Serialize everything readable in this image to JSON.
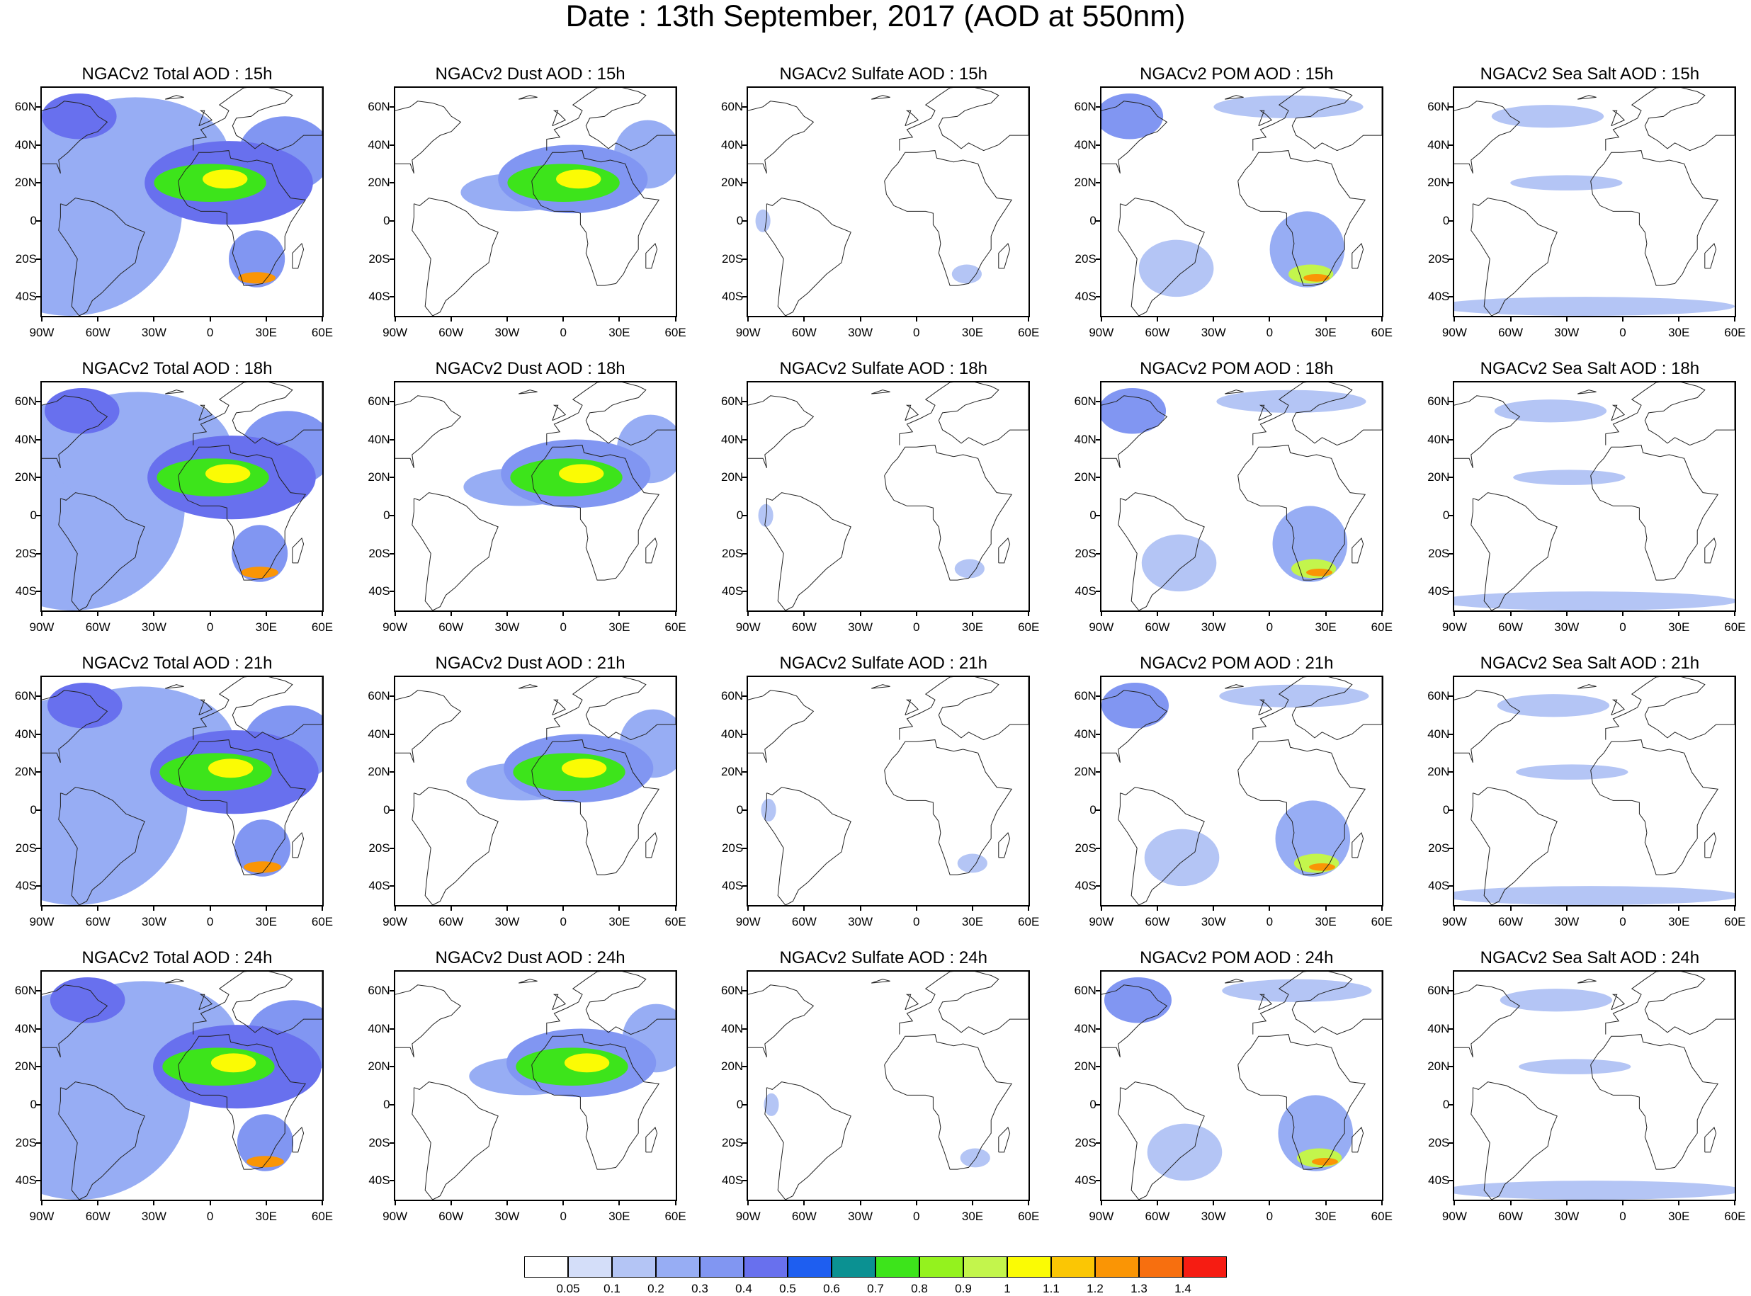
{
  "title": "Date : 13th September, 2017 (AOD at 550nm)",
  "map_extent": {
    "lon": [
      -90,
      60
    ],
    "lat": [
      -50,
      70
    ]
  },
  "lat_ticks": [
    "60N",
    "40N",
    "20N",
    "0",
    "20S",
    "40S"
  ],
  "lat_values": [
    60,
    40,
    20,
    0,
    -20,
    -40
  ],
  "lon_ticks": [
    "90W",
    "60W",
    "30W",
    "0",
    "30E",
    "60E"
  ],
  "lon_values": [
    -90,
    -60,
    -30,
    0,
    30,
    60
  ],
  "species": [
    {
      "key": "total",
      "name": "Total"
    },
    {
      "key": "dust",
      "name": "Dust"
    },
    {
      "key": "sulfate",
      "name": "Sulfate"
    },
    {
      "key": "pom",
      "name": "POM"
    },
    {
      "key": "seasalt",
      "name": "Sea Salt"
    }
  ],
  "panels": [
    {
      "title": "NGACv2 Total AOD : 15h",
      "species": "total",
      "hour": "15h"
    },
    {
      "title": "NGACv2 Dust AOD : 15h",
      "species": "dust",
      "hour": "15h"
    },
    {
      "title": "NGACv2 Sulfate AOD : 15h",
      "species": "sulfate",
      "hour": "15h"
    },
    {
      "title": "NGACv2 POM AOD : 15h",
      "species": "pom",
      "hour": "15h"
    },
    {
      "title": "NGACv2 Sea Salt AOD : 15h",
      "species": "seasalt",
      "hour": "15h"
    },
    {
      "title": "NGACv2 Total AOD : 18h",
      "species": "total",
      "hour": "18h"
    },
    {
      "title": "NGACv2 Dust AOD : 18h",
      "species": "dust",
      "hour": "18h"
    },
    {
      "title": "NGACv2 Sulfate AOD : 18h",
      "species": "sulfate",
      "hour": "18h"
    },
    {
      "title": "NGACv2 POM AOD : 18h",
      "species": "pom",
      "hour": "18h"
    },
    {
      "title": "NGACv2 Sea Salt AOD : 18h",
      "species": "seasalt",
      "hour": "18h"
    },
    {
      "title": "NGACv2 Total AOD : 21h",
      "species": "total",
      "hour": "21h"
    },
    {
      "title": "NGACv2 Dust AOD : 21h",
      "species": "dust",
      "hour": "21h"
    },
    {
      "title": "NGACv2 Sulfate AOD : 21h",
      "species": "sulfate",
      "hour": "21h"
    },
    {
      "title": "NGACv2 POM AOD : 21h",
      "species": "pom",
      "hour": "21h"
    },
    {
      "title": "NGACv2 Sea Salt AOD : 21h",
      "species": "seasalt",
      "hour": "21h"
    },
    {
      "title": "NGACv2 Total AOD : 24h",
      "species": "total",
      "hour": "24h"
    },
    {
      "title": "NGACv2 Dust AOD : 24h",
      "species": "dust",
      "hour": "24h"
    },
    {
      "title": "NGACv2 Sulfate AOD : 24h",
      "species": "sulfate",
      "hour": "24h"
    },
    {
      "title": "NGACv2 POM AOD : 24h",
      "species": "pom",
      "hour": "24h"
    },
    {
      "title": "NGACv2 Sea Salt  AOD : 24h",
      "species": "seasalt",
      "hour": "24h"
    }
  ],
  "colorbar": {
    "labels": [
      "0.05",
      "0.1",
      "0.2",
      "0.3",
      "0.4",
      "0.5",
      "0.6",
      "0.7",
      "0.8",
      "0.9",
      "1",
      "1.1",
      "1.2",
      "1.3",
      "1.4"
    ],
    "colors": [
      "#ffffff",
      "#d4def9",
      "#b4c5f5",
      "#97adf4",
      "#8196f2",
      "#6870ee",
      "#1e5ef0",
      "#0b9192",
      "#3de41b",
      "#94f21e",
      "#c3f54c",
      "#fbfb04",
      "#fbc604",
      "#fa9505",
      "#f76f0f",
      "#f61c12"
    ]
  },
  "plumes": {
    "total": [
      {
        "lon": -75,
        "lat": 5,
        "rx": 60,
        "ry": 55,
        "v": 0.25
      },
      {
        "lon": -40,
        "lat": 35,
        "rx": 50,
        "ry": 30,
        "v": 0.25
      },
      {
        "lon": -70,
        "lat": 55,
        "rx": 20,
        "ry": 12,
        "v": 0.4
      },
      {
        "lon": 10,
        "lat": 20,
        "rx": 45,
        "ry": 22,
        "v": 0.4
      },
      {
        "lon": 0,
        "lat": 20,
        "rx": 30,
        "ry": 10,
        "v": 0.75
      },
      {
        "lon": 8,
        "lat": 22,
        "rx": 12,
        "ry": 5,
        "v": 1.05
      },
      {
        "lon": 25,
        "lat": -30,
        "rx": 10,
        "ry": 3,
        "v": 1.25
      },
      {
        "lon": 25,
        "lat": -20,
        "rx": 15,
        "ry": 15,
        "v": 0.35
      },
      {
        "lon": 40,
        "lat": 35,
        "rx": 25,
        "ry": 20,
        "v": 0.3
      }
    ],
    "dust": [
      {
        "lon": 5,
        "lat": 22,
        "rx": 40,
        "ry": 18,
        "v": 0.35
      },
      {
        "lon": -25,
        "lat": 15,
        "rx": 30,
        "ry": 10,
        "v": 0.25
      },
      {
        "lon": 0,
        "lat": 20,
        "rx": 30,
        "ry": 10,
        "v": 0.75
      },
      {
        "lon": 8,
        "lat": 22,
        "rx": 12,
        "ry": 5,
        "v": 1.05
      },
      {
        "lon": 45,
        "lat": 35,
        "rx": 18,
        "ry": 18,
        "v": 0.2
      }
    ],
    "sulfate": [
      {
        "lon": 27,
        "lat": -28,
        "rx": 8,
        "ry": 5,
        "v": 0.15
      },
      {
        "lon": -82,
        "lat": 0,
        "rx": 4,
        "ry": 6,
        "v": 0.1
      }
    ],
    "pom": [
      {
        "lon": -75,
        "lat": 55,
        "rx": 18,
        "ry": 12,
        "v": 0.3
      },
      {
        "lon": 20,
        "lat": -15,
        "rx": 20,
        "ry": 20,
        "v": 0.25
      },
      {
        "lon": 22,
        "lat": -28,
        "rx": 12,
        "ry": 5,
        "v": 0.9
      },
      {
        "lon": 25,
        "lat": -30,
        "rx": 7,
        "ry": 2,
        "v": 1.25
      },
      {
        "lon": -50,
        "lat": -25,
        "rx": 20,
        "ry": 15,
        "v": 0.15
      },
      {
        "lon": 10,
        "lat": 60,
        "rx": 40,
        "ry": 6,
        "v": 0.15
      }
    ],
    "seasalt": [
      {
        "lon": -20,
        "lat": -45,
        "rx": 80,
        "ry": 5,
        "v": 0.15
      },
      {
        "lon": -40,
        "lat": 55,
        "rx": 30,
        "ry": 6,
        "v": 0.15
      },
      {
        "lon": -30,
        "lat": 20,
        "rx": 30,
        "ry": 4,
        "v": 0.1
      }
    ]
  }
}
